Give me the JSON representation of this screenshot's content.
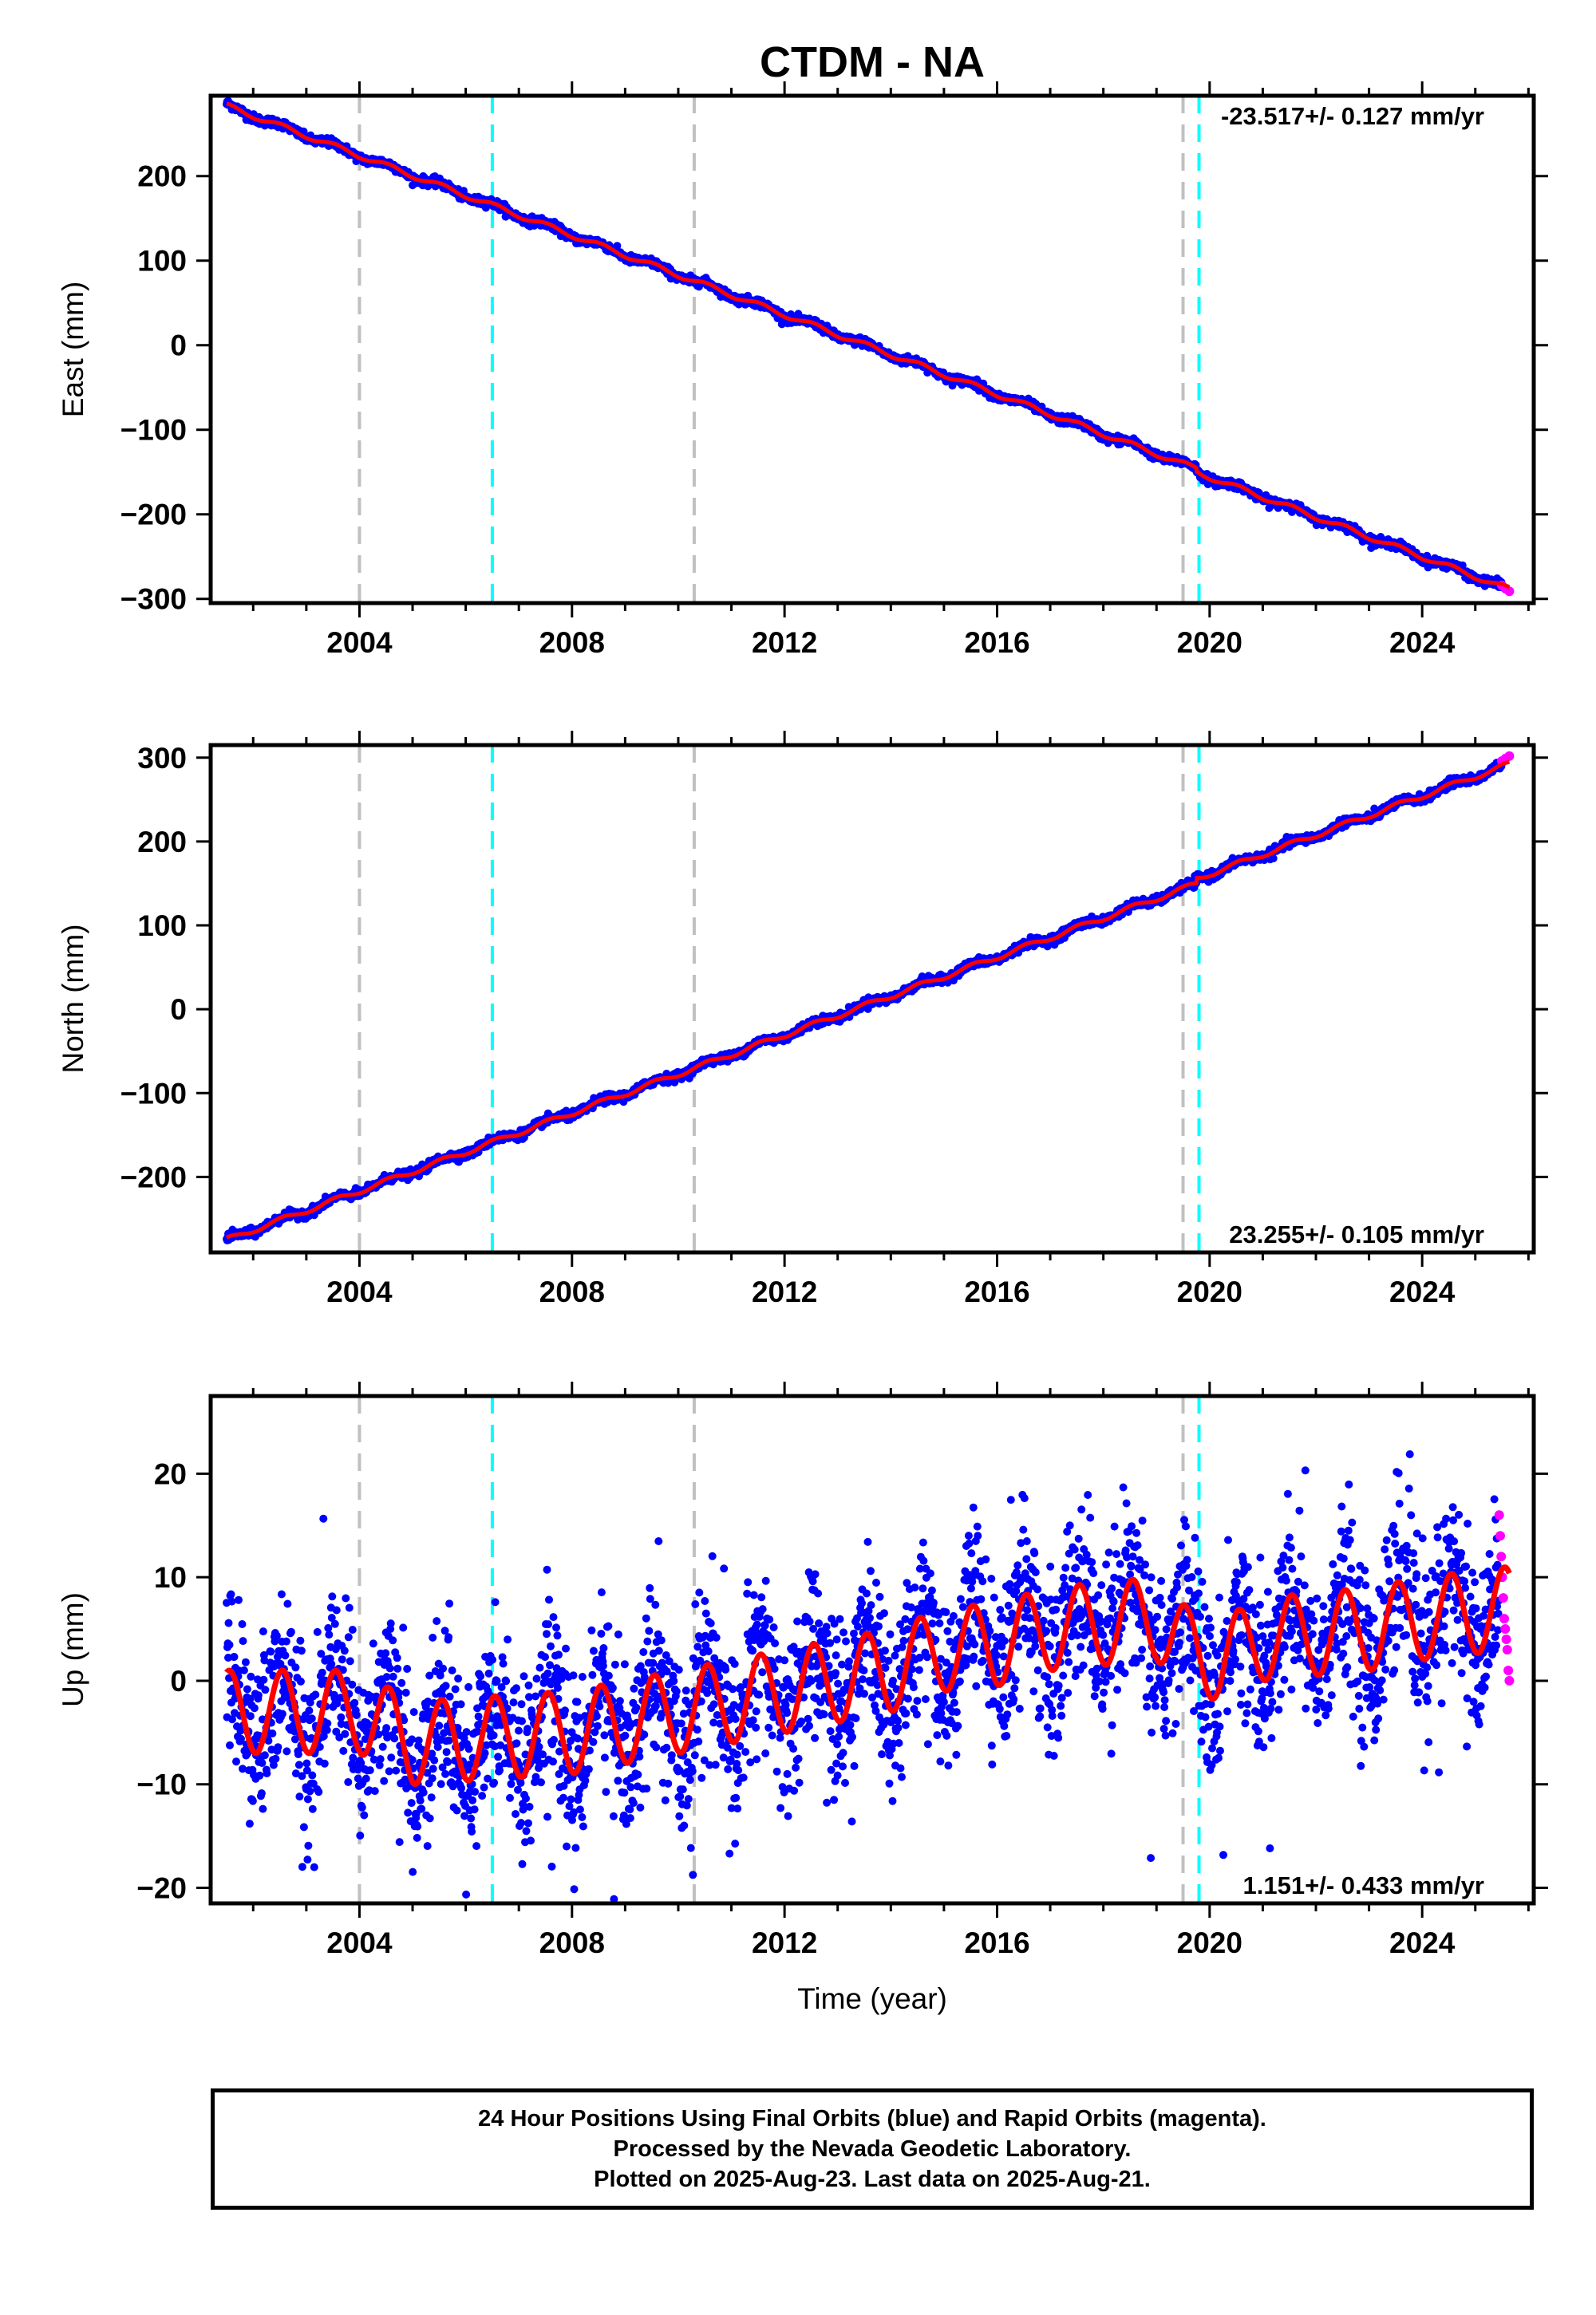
{
  "title": "CTDM - NA",
  "xlabel": "Time (year)",
  "footer": {
    "line1": "24 Hour Positions Using Final Orbits (blue) and Rapid Orbits (magenta).",
    "line2": "Processed by the Nevada Geodetic Laboratory.",
    "line3": "Plotted on 2025-Aug-23. Last data on 2025-Aug-21."
  },
  "colors": {
    "final": "#0000ff",
    "rapid": "#ff00ff",
    "model": "#ff0000",
    "event_gray": "#c0c0c0",
    "event_cyan": "#00ffff"
  },
  "chart_data": [
    {
      "type": "scatter",
      "ylabel": "East (mm)",
      "rate_text": "-23.517+/- 0.127 mm/yr",
      "rate_position": "top-right",
      "xlim": [
        2001.2,
        2026.1
      ],
      "ylim": [
        -305,
        295
      ],
      "x_ticks": [
        2004,
        2008,
        2012,
        2016,
        2020,
        2024
      ],
      "y_ticks": [
        -300,
        -200,
        -100,
        0,
        100,
        200
      ],
      "start": [
        2001.5,
        283
      ],
      "rate_mm_per_yr": -23.517,
      "seasonal_amp_mm": 3,
      "steps": [
        {
          "x": 2019.75,
          "size": -4
        }
      ],
      "scatter_mm": 2.5,
      "rapid_range": [
        2025.5,
        2025.64
      ],
      "rapid_values": [
        -284,
        -288,
        -291
      ],
      "events_gray": [
        2004.0,
        2010.3,
        2019.5
      ],
      "events_cyan": [
        2006.5,
        2019.8
      ]
    },
    {
      "type": "scatter",
      "ylabel": "North (mm)",
      "rate_text": "23.255+/- 0.105 mm/yr",
      "rate_position": "bottom-right",
      "xlim": [
        2001.2,
        2026.1
      ],
      "ylim": [
        -290,
        315
      ],
      "x_ticks": [
        2004,
        2008,
        2012,
        2016,
        2020,
        2024
      ],
      "y_ticks": [
        -200,
        -100,
        0,
        100,
        200,
        300
      ],
      "start": [
        2001.5,
        -275
      ],
      "rate_mm_per_yr": 23.255,
      "seasonal_amp_mm": 3,
      "steps": [
        {
          "x": 2019.75,
          "size": 6
        }
      ],
      "scatter_mm": 2.5,
      "rapid_range": [
        2025.5,
        2025.64
      ],
      "rapid_values": [
        296,
        299,
        302
      ],
      "events_gray": [
        2004.0,
        2010.3,
        2019.5
      ],
      "events_cyan": [
        2006.5,
        2019.8
      ]
    },
    {
      "type": "scatter",
      "ylabel": "Up (mm)",
      "rate_text": "1.151+/- 0.433 mm/yr",
      "rate_position": "bottom-right",
      "xlim": [
        2001.2,
        2026.1
      ],
      "ylim": [
        -21.5,
        27.5
      ],
      "x_ticks": [
        2004,
        2008,
        2012,
        2016,
        2020,
        2024
      ],
      "y_ticks": [
        -20,
        -10,
        0,
        10,
        20
      ],
      "model_baseline": [
        [
          2001.5,
          -3
        ],
        [
          2004.0,
          -3
        ],
        [
          2005.0,
          -6
        ],
        [
          2008.0,
          -5
        ],
        [
          2010.0,
          -3
        ],
        [
          2012.0,
          -1
        ],
        [
          2014.0,
          1
        ],
        [
          2015.0,
          3
        ],
        [
          2016.0,
          3.5
        ],
        [
          2017.0,
          5
        ],
        [
          2019.0,
          6
        ],
        [
          2019.6,
          3
        ],
        [
          2020.2,
          2
        ],
        [
          2021.0,
          4
        ],
        [
          2022.0,
          4.5
        ],
        [
          2023.0,
          5
        ],
        [
          2024.0,
          6
        ],
        [
          2025.6,
          7
        ]
      ],
      "seasonal_amp_mm": 4,
      "scatter_mm": 4,
      "rapid_range": [
        2025.45,
        2025.64
      ],
      "rapid_values": [
        16,
        14,
        12,
        10,
        8,
        6,
        5,
        4,
        3,
        1,
        0
      ],
      "events_gray": [
        2004.0,
        2010.3,
        2019.5
      ],
      "events_cyan": [
        2006.5,
        2019.8
      ]
    }
  ]
}
